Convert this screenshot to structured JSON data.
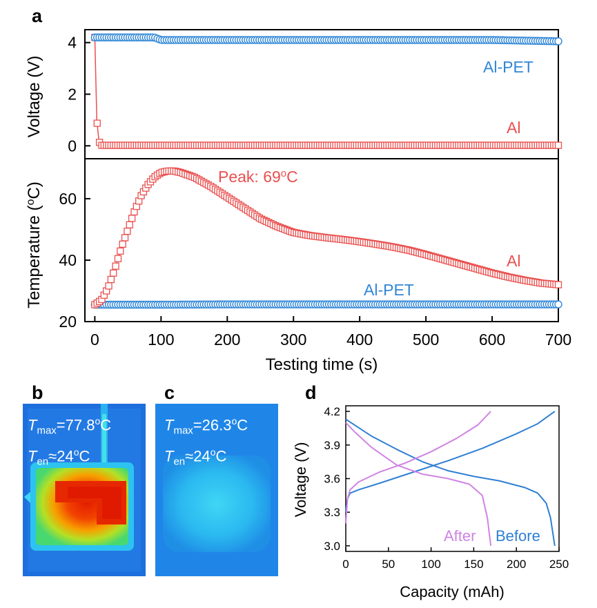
{
  "chart_data": [
    {
      "panel": "a",
      "type": "scatter",
      "xlabel": "Testing time (s)",
      "xlim": [
        -15,
        700
      ],
      "xticks": [
        0,
        100,
        200,
        300,
        400,
        500,
        600,
        700
      ],
      "subplots": [
        {
          "ylabel": "Voltage (V)",
          "ylim": [
            -0.5,
            4.5
          ],
          "yticks": [
            0,
            2,
            4
          ],
          "series": [
            {
              "name": "Al-PET",
              "color": "#2f86d6",
              "marker": "circle",
              "x": [
                0,
                90,
                100,
                200,
                300,
                400,
                500,
                600,
                700
              ],
              "y": [
                4.2,
                4.2,
                4.1,
                4.1,
                4.1,
                4.1,
                4.1,
                4.1,
                4.05
              ]
            },
            {
              "name": "Al",
              "color": "#e8504f",
              "marker": "square",
              "x": [
                0,
                3,
                6,
                8,
                100,
                200,
                300,
                400,
                500,
                600,
                700
              ],
              "y": [
                4.2,
                1.0,
                0.25,
                0.02,
                0.02,
                0.02,
                0.02,
                0.02,
                0.02,
                0.02,
                0.02
              ]
            }
          ]
        },
        {
          "ylabel": "Temperature (oC)",
          "ylim": [
            20,
            73
          ],
          "yticks": [
            20,
            40,
            60
          ],
          "annotation": "Peak: 69oC",
          "series": [
            {
              "name": "Al",
              "color": "#e8504f",
              "marker": "square",
              "x": [
                0,
                10,
                20,
                30,
                40,
                50,
                60,
                70,
                80,
                90,
                100,
                110,
                120,
                130,
                150,
                175,
                200,
                225,
                250,
                275,
                300,
                325,
                350,
                375,
                400,
                425,
                450,
                475,
                500,
                525,
                550,
                575,
                600,
                625,
                650,
                675,
                700
              ],
              "y": [
                25.5,
                27,
                31,
                37,
                44,
                50,
                56,
                61,
                64.5,
                67,
                68.5,
                69,
                69,
                68.5,
                67,
                64,
                60.5,
                57,
                53.5,
                51,
                49,
                48,
                47.3,
                46.7,
                46,
                45.2,
                44.3,
                43.2,
                41.8,
                40.3,
                38.8,
                37.3,
                35.8,
                34.5,
                33.4,
                32.5,
                32
              ]
            },
            {
              "name": "Al-PET",
              "color": "#2f86d6",
              "marker": "circle",
              "x": [
                0,
                100,
                200,
                300,
                400,
                500,
                600,
                700
              ],
              "y": [
                25.5,
                25.5,
                25.6,
                25.6,
                25.6,
                25.6,
                25.6,
                25.6
              ]
            }
          ]
        }
      ]
    },
    {
      "panel": "d",
      "type": "line",
      "xlabel": "Capacity (mAh)",
      "ylabel": "Voltage (V)",
      "xlim": [
        0,
        250
      ],
      "ylim": [
        2.95,
        4.25
      ],
      "xticks": [
        0,
        50,
        100,
        150,
        200,
        250
      ],
      "yticks": [
        3.0,
        3.3,
        3.6,
        3.9,
        4.2
      ],
      "series": [
        {
          "name": "Before",
          "color": "#2f7fd3",
          "discharge": {
            "x": [
              0,
              10,
              30,
              60,
              90,
              120,
              150,
              180,
              210,
              225,
              235,
              240,
              243,
              245
            ],
            "y": [
              4.13,
              4.08,
              3.98,
              3.86,
              3.75,
              3.67,
              3.62,
              3.58,
              3.52,
              3.47,
              3.38,
              3.25,
              3.1,
              3.0
            ]
          },
          "charge": {
            "x": [
              0,
              2,
              5,
              15,
              40,
              80,
              120,
              160,
              200,
              225,
              245
            ],
            "y": [
              3.3,
              3.42,
              3.47,
              3.5,
              3.56,
              3.66,
              3.76,
              3.87,
              4.0,
              4.09,
              4.2
            ]
          }
        },
        {
          "name": "After",
          "color": "#cf83e3",
          "discharge": {
            "x": [
              0,
              10,
              30,
              60,
              90,
              120,
              145,
              160,
              166,
              170
            ],
            "y": [
              4.1,
              4.02,
              3.88,
              3.72,
              3.64,
              3.6,
              3.55,
              3.45,
              3.25,
              3.0
            ]
          },
          "charge": {
            "x": [
              0,
              2,
              5,
              15,
              40,
              70,
              100,
              130,
              155,
              170
            ],
            "y": [
              3.2,
              3.42,
              3.5,
              3.57,
              3.66,
              3.74,
              3.84,
              3.96,
              4.08,
              4.2
            ]
          }
        }
      ]
    }
  ],
  "figure": {
    "panel_a_letter": "a",
    "panel_b_letter": "b",
    "panel_c_letter": "c",
    "panel_d_letter": "d",
    "voltage_label_alpet": "Al-PET",
    "voltage_label_al": "Al",
    "temp_label_al": "Al",
    "temp_label_alpet": "Al-PET",
    "peak_annotation_prefix": "Peak: 69",
    "peak_annotation_sup": "o",
    "peak_annotation_suffix": "C",
    "voltage_ylabel": "Voltage (V)",
    "temp_ylabel_prefix": "Temperature (",
    "temp_ylabel_sup": "o",
    "temp_ylabel_suffix": "C)",
    "xlabel": "Testing time (s)",
    "d_xlabel": "Capacity (mAh)",
    "d_ylabel": "Voltage (V)",
    "d_label_after": "After",
    "d_label_before": "Before"
  },
  "thermal": {
    "b": {
      "tmax_T": "T",
      "tmax_sub": "max",
      "tmax_value": "=77.8",
      "tmax_sup": "o",
      "tmax_unit": "C",
      "ten_T": "T",
      "ten_sub": "en",
      "ten_value": "≈24",
      "ten_sup": "o",
      "ten_unit": "C"
    },
    "c": {
      "tmax_T": "T",
      "tmax_sub": "max",
      "tmax_value": "=26.3",
      "tmax_sup": "o",
      "tmax_unit": "C",
      "ten_T": "T",
      "ten_sub": "en",
      "ten_value": "≈24",
      "ten_sup": "o",
      "ten_unit": "C"
    }
  }
}
